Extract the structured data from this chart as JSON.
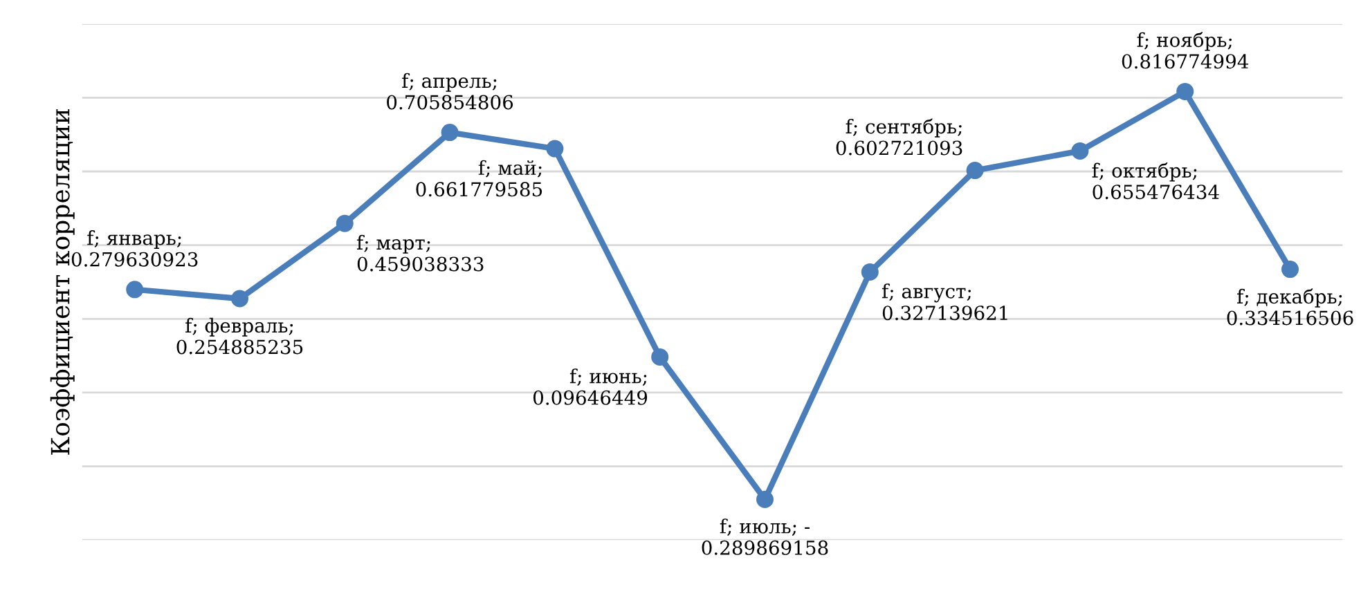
{
  "chart_data": {
    "type": "line",
    "ylabel": "Коэффициент корреляции",
    "categories": [
      null,
      null,
      null,
      null,
      null,
      null,
      null,
      null,
      null,
      null,
      null,
      null
    ],
    "series": [
      {
        "color": "#4a7ebb",
        "values": [
          0.279630923,
          0.254885235,
          0.459038333,
          0.705854806,
          0.661779585,
          0.09646449,
          -0.289869158,
          0.327139621,
          0.602721093,
          0.655476434,
          0.816774994,
          0.334516506
        ],
        "value_labels": [
          "f; январь;\n0.279630923",
          "f; февраль;\n0.254885235",
          "f; март;\n0.459038333",
          "f; апрель;\n0.705854806",
          "f; май;\n0.661779585",
          "f; июнь;\n0.09646449",
          "f; июль; -\n0.289869158",
          "f; август;\n0.327139621",
          "f; сентябрь;\n0.602721093",
          "f; октябрь;\n0.655476434",
          "f; ноябрь;\n0.816774994",
          "f; декабрь;\n0.334516506"
        ]
      }
    ],
    "ylim": [
      -0.4,
      1.0
    ],
    "yticks": [
      {
        "value": -0.4,
        "label": null
      },
      {
        "value": -0.2,
        "label": null
      },
      {
        "value": 0,
        "label": null
      },
      {
        "value": 0.2,
        "label": null
      },
      {
        "value": 0.4,
        "label": null
      },
      {
        "value": 0.6,
        "label": null
      },
      {
        "value": 0.8,
        "label": null
      },
      {
        "value": 1.0,
        "label": null
      }
    ],
    "grid": "y",
    "marker": "circle",
    "line_style": "solid",
    "tick_labels": false
  }
}
